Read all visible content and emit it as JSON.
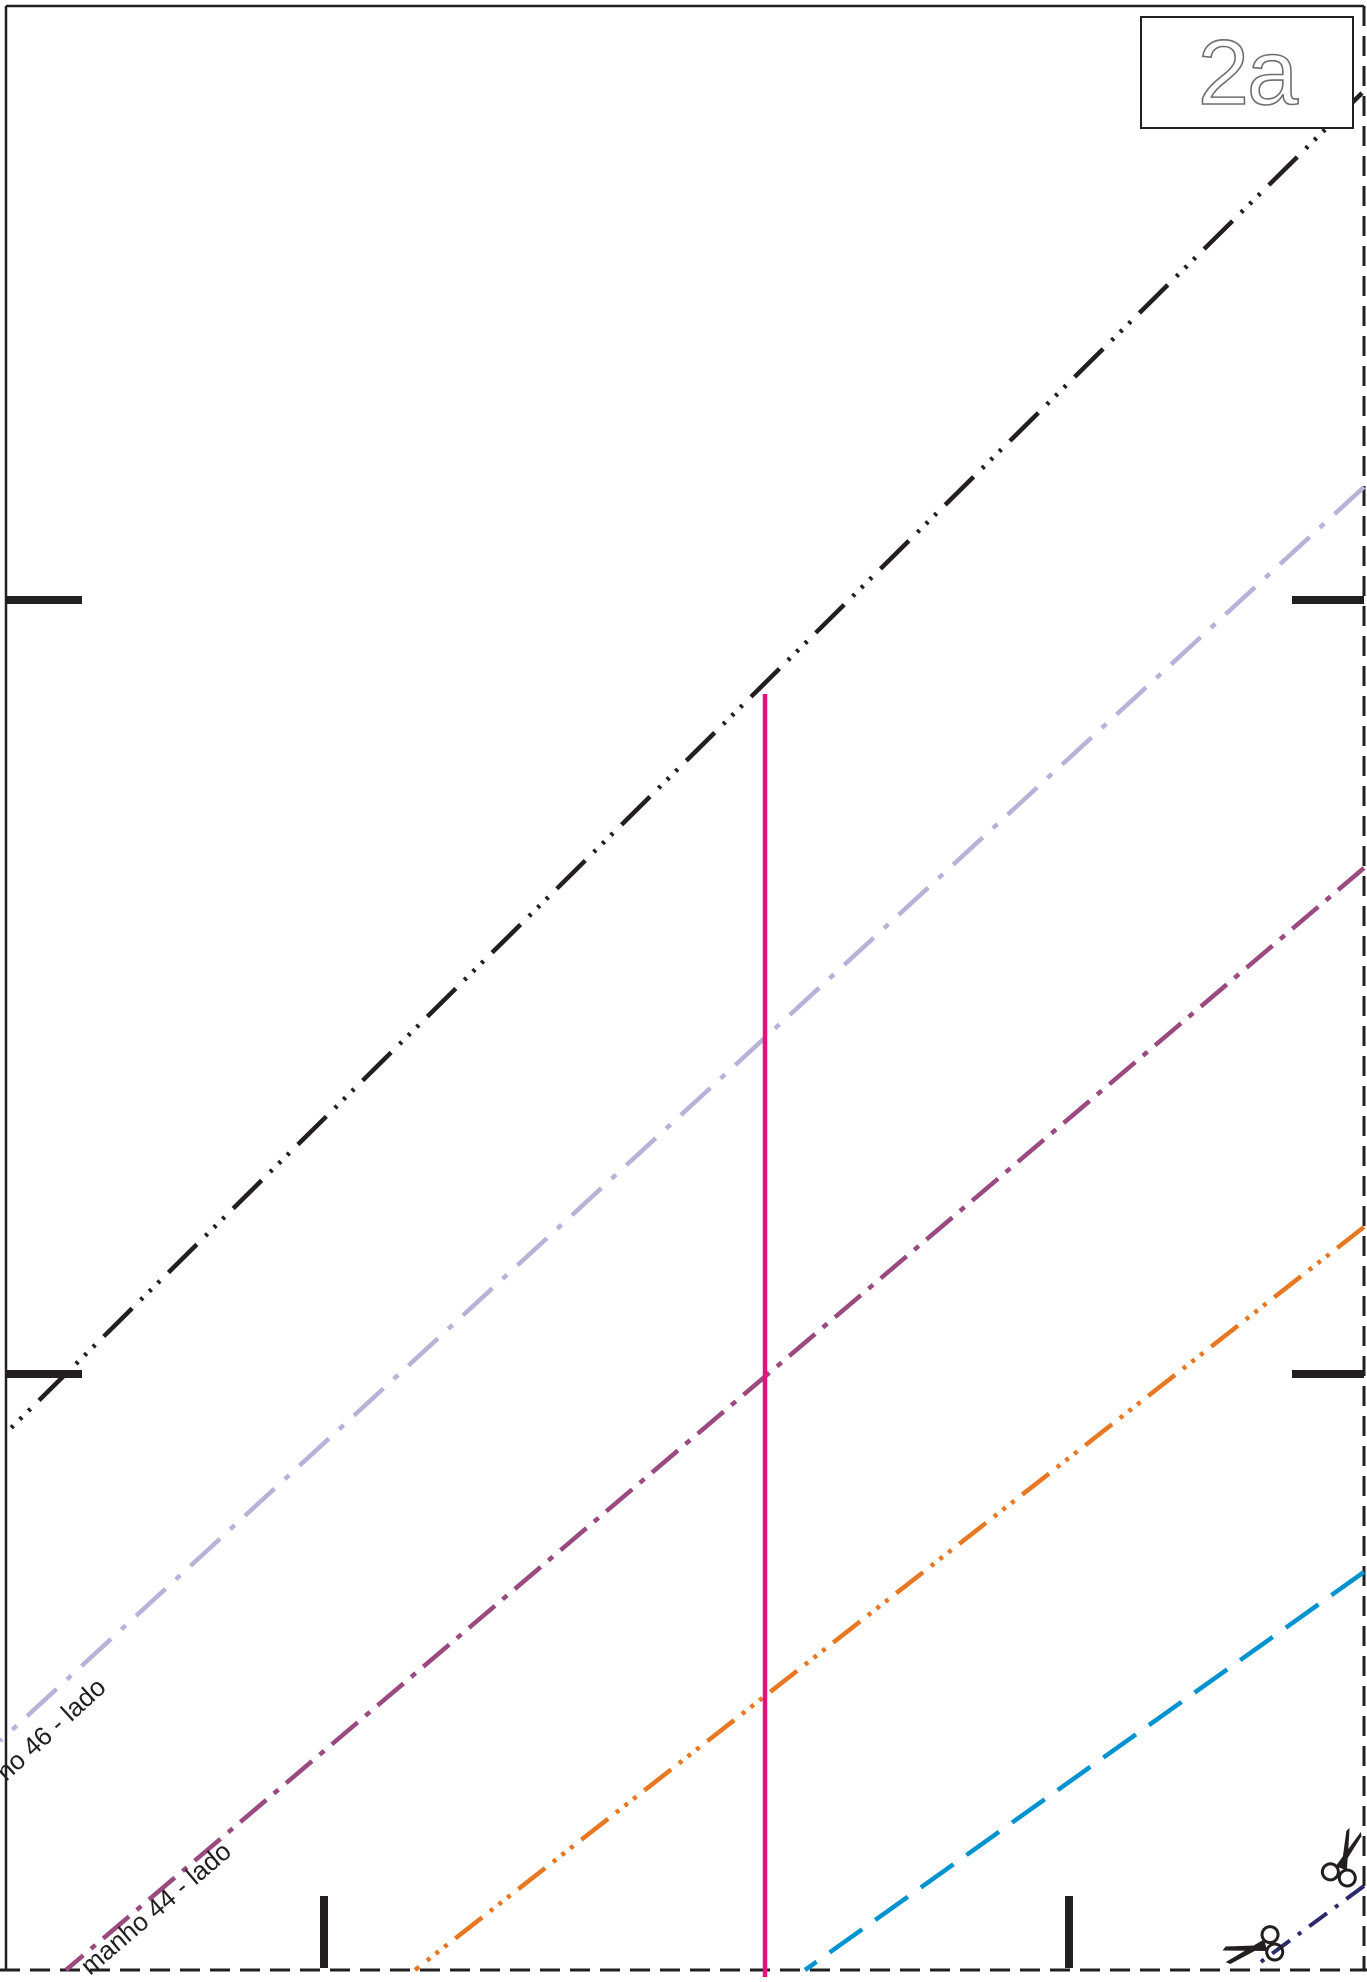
{
  "page": {
    "label": "2a",
    "colors": {
      "ink": "#231f20",
      "size_48": "#231f20",
      "size_46": "#b7b2d8",
      "size_44": "#9b4a80",
      "size_42": "#e87722",
      "size_40": "#0093d0",
      "center_line": "#e0147c",
      "navy": "#2b2a6b"
    }
  },
  "pattern_lines": [
    {
      "id": "size-48",
      "style": "long-dash-triple-dot",
      "color_key": "size_48"
    },
    {
      "id": "size-46",
      "style": "dash-dot",
      "color_key": "size_46",
      "label": "no 46 - lado"
    },
    {
      "id": "size-44",
      "style": "dash-dot",
      "color_key": "size_44",
      "label": "manho 44 - lado"
    },
    {
      "id": "size-42",
      "style": "dash-triple-dot",
      "color_key": "size_42"
    },
    {
      "id": "size-40",
      "style": "long-dash",
      "color_key": "size_40"
    }
  ],
  "icons": [
    "scissors-icon",
    "scissors-icon"
  ]
}
